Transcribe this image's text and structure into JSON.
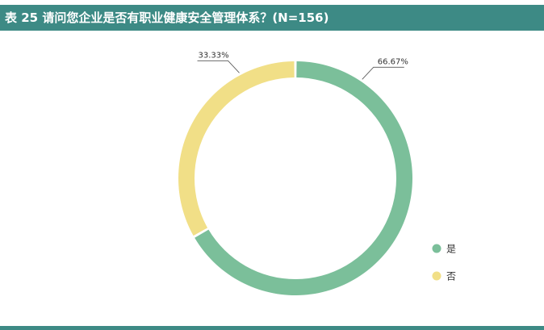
{
  "header": {
    "title": "表 25  请问您企业是否有职业健康安全管理体系？(N=156)"
  },
  "colors": {
    "header_bg": "#3d8a85",
    "series_yes": "#7bbf9a",
    "series_no": "#f1df87",
    "label_text": "#333333",
    "leader_line": "#555555"
  },
  "chart_data": {
    "type": "pie",
    "subtype": "donut",
    "title": "表 25  请问您企业是否有职业健康安全管理体系？(N=156)",
    "categories": [
      "是",
      "否"
    ],
    "values": [
      66.67,
      33.33
    ],
    "labels": [
      "66.67%",
      "33.33%"
    ],
    "colors": [
      "#7bbf9a",
      "#f1df87"
    ],
    "legend_position": "right",
    "start_angle": "top",
    "direction": "clockwise"
  }
}
